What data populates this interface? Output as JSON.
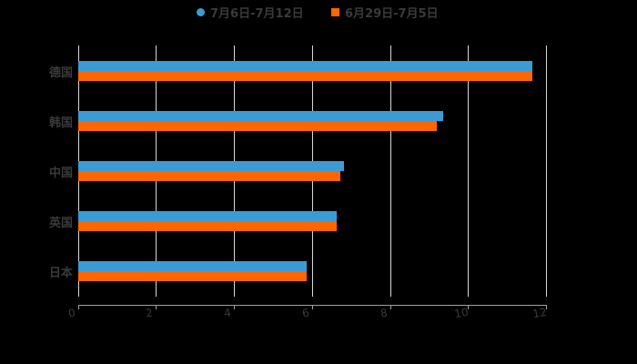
{
  "chart_data": {
    "type": "bar",
    "orientation": "horizontal",
    "title": "",
    "xlabel": "",
    "ylabel": "",
    "categories": [
      "德国",
      "韩国",
      "中国",
      "英国",
      "日本"
    ],
    "series": [
      {
        "name": "7月6日-7月12日",
        "color": "#3a9bd5",
        "values": [
          11.65,
          9.36,
          6.82,
          6.63,
          5.86
        ]
      },
      {
        "name": "6月29日-7月5日",
        "color": "#ff6600",
        "values": [
          11.65,
          9.2,
          6.72,
          6.63,
          5.86
        ]
      }
    ],
    "xlim": [
      0,
      12
    ],
    "x_ticks": [
      "0",
      "2",
      "4",
      "6",
      "8",
      "10",
      "12"
    ],
    "grid": true,
    "legend_position": "top"
  },
  "legend": {
    "items": [
      {
        "label": "7月6日-7月12日",
        "color": "#3a9bd5",
        "marker": "circle"
      },
      {
        "label": "6月29日-7月5日",
        "color": "#ff6600",
        "marker": "square"
      }
    ]
  }
}
